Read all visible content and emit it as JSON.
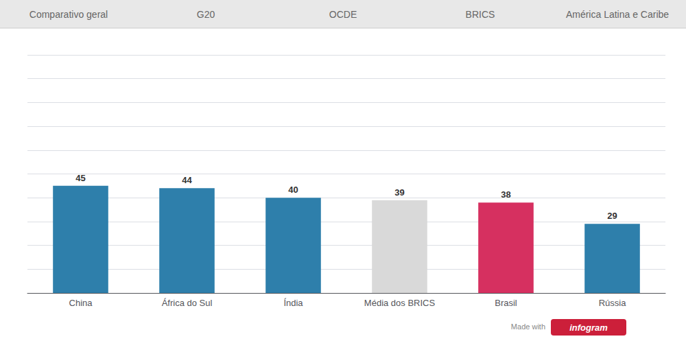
{
  "chart_data": {
    "type": "bar",
    "categories": [
      "China",
      "África do Sul",
      "Índia",
      "Média dos BRICS",
      "Brasil",
      "Rússia"
    ],
    "values": [
      45,
      44,
      40,
      39,
      38,
      29
    ],
    "colors": [
      "#2e7fab",
      "#2e7fab",
      "#2e7fab",
      "#d9d9d9",
      "#d63060",
      "#2e7fab"
    ],
    "ylim": [
      0,
      100
    ],
    "yticks": [
      0,
      10,
      20,
      30,
      40,
      50,
      60,
      70,
      80,
      90,
      100
    ],
    "grid": true,
    "data_labels": true,
    "tick_labels": "x",
    "annotations": [
      [
        "Comparativo geral",
        "G20",
        "OCDE",
        "BRICS",
        "América Latina e Caribe"
      ],
      [
        "Made with",
        "infogram"
      ]
    ]
  }
}
